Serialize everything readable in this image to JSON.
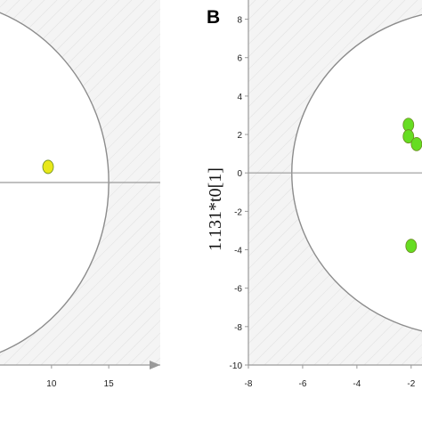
{
  "chart_data": [
    {
      "type": "scatter",
      "panel": "",
      "xlabel": "",
      "ylabel": "",
      "xlim": [
        5.5,
        19.5
      ],
      "ylim": [
        -7,
        7
      ],
      "xticks": [
        10,
        15
      ],
      "yticks": [],
      "grid": true,
      "series": [
        {
          "color": "#e8e81a",
          "points": [
            {
              "x": 9.7,
              "y": 0.6
            }
          ]
        }
      ],
      "ellipse": {
        "cx": 0,
        "cy": 0,
        "rx": 15,
        "ry": 7
      }
    },
    {
      "type": "scatter",
      "panel": "B",
      "xlabel": "",
      "ylabel": "1.131*t0[1]",
      "xlim": [
        -8,
        -1.6
      ],
      "ylim": [
        -10,
        9
      ],
      "xticks": [
        -8,
        -6,
        -4,
        -2
      ],
      "yticks": [
        8,
        6,
        4,
        2,
        0,
        -2,
        -4,
        -6,
        -8,
        -10
      ],
      "grid": true,
      "series": [
        {
          "color": "#66dd22",
          "points": [
            {
              "x": -2.1,
              "y": 2.5
            },
            {
              "x": -2.1,
              "y": 1.9
            },
            {
              "x": -1.8,
              "y": 1.5
            },
            {
              "x": -2.0,
              "y": -3.8
            }
          ]
        }
      ],
      "ellipse": {
        "cx": 0,
        "cy": 0,
        "rx": 6.4,
        "ry": 8.5
      }
    }
  ],
  "colors": {
    "plot_bg": "#f4f4f4",
    "grid": "#e2e2e2",
    "axis": "#9a9a9a",
    "ellipse_fill": "#ffffff",
    "ellipse_stroke": "#8c8c8c"
  }
}
